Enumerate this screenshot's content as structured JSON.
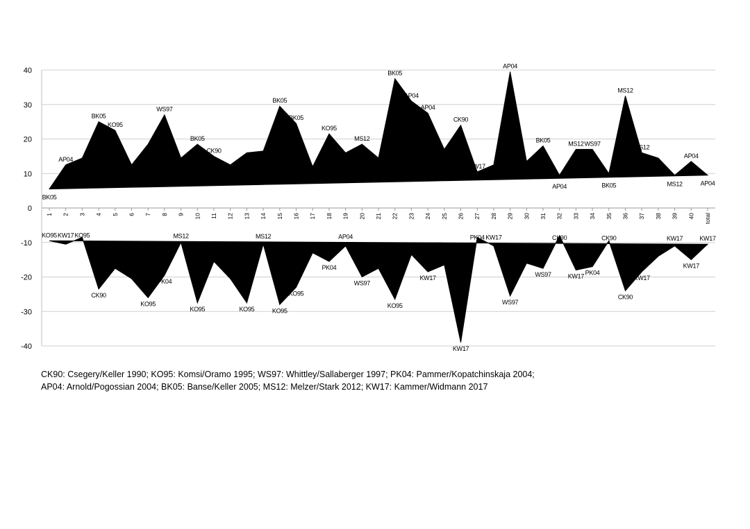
{
  "chart_data": {
    "type": "area",
    "categories": [
      "1",
      "2",
      "3",
      "4",
      "5",
      "6",
      "7",
      "8",
      "9",
      "10",
      "11",
      "12",
      "13",
      "14",
      "15",
      "16",
      "17",
      "18",
      "19",
      "20",
      "21",
      "22",
      "23",
      "24",
      "25",
      "26",
      "27",
      "28",
      "29",
      "30",
      "31",
      "32",
      "33",
      "34",
      "35",
      "36",
      "37",
      "38",
      "39",
      "40",
      "total"
    ],
    "ylim": [
      -40,
      40
    ],
    "yticks": [
      "40",
      "30",
      "20",
      "10",
      "0",
      "-10",
      "-20",
      "-30",
      "-40"
    ],
    "grid": true,
    "legend": "none",
    "series": [
      {
        "values": [
          5.5,
          12.5,
          14.5,
          25,
          22.5,
          12.5,
          18.5,
          27,
          14.5,
          18.5,
          15,
          12.5,
          16,
          16.5,
          29.5,
          24.5,
          12,
          21.5,
          16,
          18.5,
          14.5,
          37.5,
          31,
          27.5,
          17,
          24,
          10.5,
          12.5,
          39.5,
          13.5,
          18,
          9.5,
          17,
          17,
          10,
          32.5,
          16,
          14.5,
          9.5,
          13.5,
          9.5
        ],
        "baseline": [
          5.5,
          9.5
        ],
        "labels": [
          "BK05",
          "AP04",
          "",
          "BK05",
          "KO95",
          "",
          "",
          "WS97",
          "",
          "BK05",
          "CK90",
          "",
          "",
          "",
          "BK05",
          "BK05",
          "",
          "KO95",
          "",
          "MS12",
          "",
          "BK05",
          "AP04",
          "AP04",
          "",
          "CK90",
          "KW17",
          "",
          "AP04",
          "",
          "BK05",
          "AP04",
          "MS12",
          "WS97",
          "BK05",
          "MS12",
          "MS12",
          "",
          "MS12",
          "AP04",
          "AP04"
        ]
      },
      {
        "values": [
          -9.5,
          -10.5,
          -8.5,
          -23.5,
          -17.5,
          -20.5,
          -26,
          -19.5,
          -10,
          -27.5,
          -15.5,
          -20.5,
          -27.5,
          -10.5,
          -28,
          -23,
          -13,
          -15.5,
          -11,
          -20,
          -17.5,
          -26.5,
          -13.5,
          -18.5,
          -16.5,
          -39,
          -8.5,
          -11,
          -25.5,
          -16,
          -17.5,
          -8,
          -18,
          -17,
          -9.5,
          -24,
          -18.5,
          -14,
          -11,
          -15,
          -10.5
        ],
        "baseline": [
          -9.5,
          -10.5
        ],
        "labels": [
          "KO95",
          "KW17",
          "KO95",
          "CK90",
          "",
          "",
          "KO95",
          "PK04",
          "MS12",
          "KO95",
          "",
          "",
          "KO95",
          "MS12",
          "KO95",
          "KO95",
          "",
          "PK04",
          "AP04",
          "WS97",
          "",
          "KO95",
          "",
          "KW17",
          "",
          "KW17",
          "PK04",
          "KW17",
          "WS97",
          "",
          "WS97",
          "CK90",
          "KW17",
          "PK04",
          "CK90",
          "CK90",
          "KW17",
          "",
          "KW17",
          "KW17",
          "KW17"
        ]
      }
    ]
  },
  "footnote": {
    "line1": "CK90: Csegery/Keller 1990; KO95: Komsi/Oramo 1995; WS97: Whittley/Sallaberger 1997; PK04: Pammer/Kopatchinskaja 2004;",
    "line2": "AP04: Arnold/Pogossian 2004; BK05: Banse/Keller 2005; MS12: Melzer/Stark 2012; KW17: Kammer/Widmann 2017"
  }
}
